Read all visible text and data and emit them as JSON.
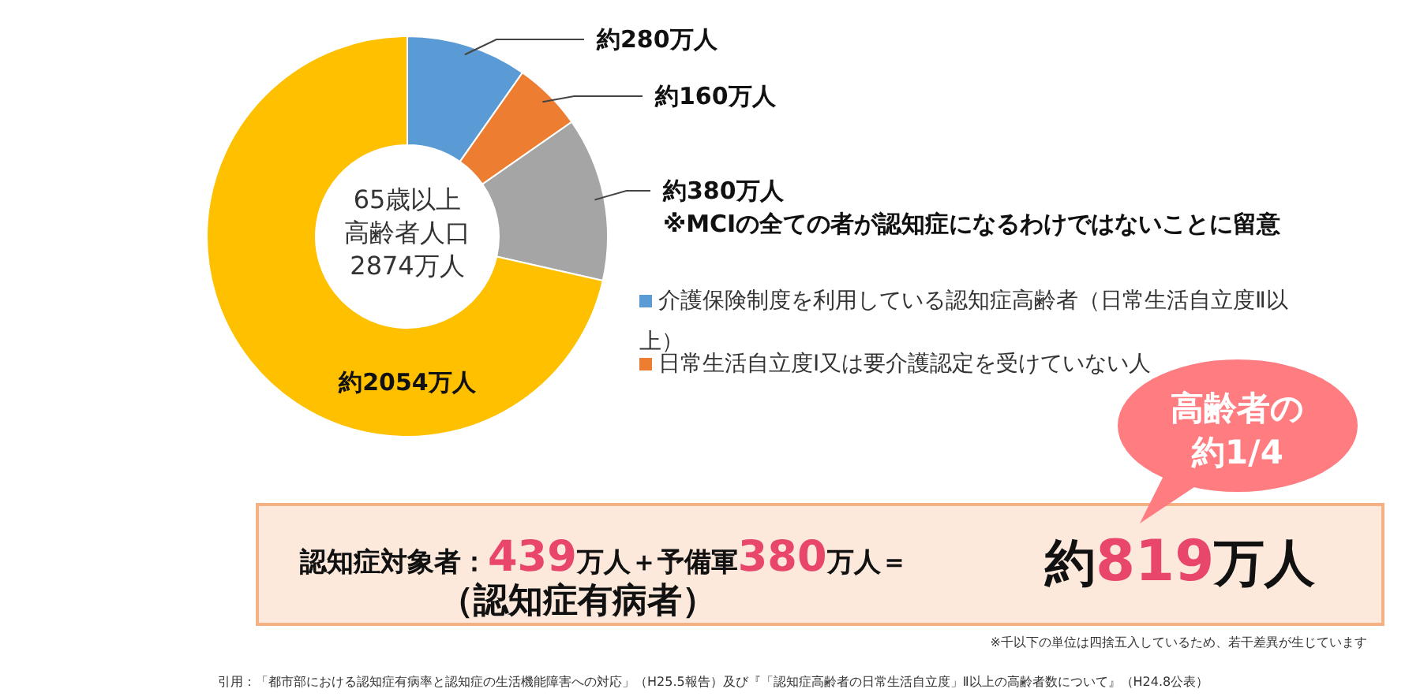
{
  "chart_data": {
    "type": "donut",
    "categories": [
      "介護保険制度を利用している認知症高齢者（日常生活自立度Ⅱ以上）",
      "日常生活自立度Ⅰ又は要介護認定を受けていない人",
      null,
      null
    ],
    "values": [
      280,
      160,
      380,
      2054
    ],
    "colors": [
      "#5b9bd5",
      "#ed7d31",
      "#a5a5a5",
      "#ffc000"
    ],
    "value_labels": [
      "約280万人",
      "約160万人",
      "約380万人",
      "約2054万人"
    ],
    "legend": "right",
    "annotations": [
      "65歳以上",
      "高齢者人口",
      "2874万人",
      "※MCIの全ての者が認知症になるわけではないことに留意",
      "高齢者の",
      "約1/4",
      "認知症対象者：",
      "439",
      "万人＋予備軍",
      "380",
      "万人＝",
      "約",
      "819",
      "万人",
      "（認知症有病者）",
      "※千以下の単位は四捨五入しているため、若干差異が生じています",
      "引用：「都市部における認知症有病率と認知症の生活機能障害への対応」（H25.5報告）及び『「認知症高齢者の日常生活自立度」Ⅱ以上の高齢者数について』（H24.8公表）"
    ]
  }
}
